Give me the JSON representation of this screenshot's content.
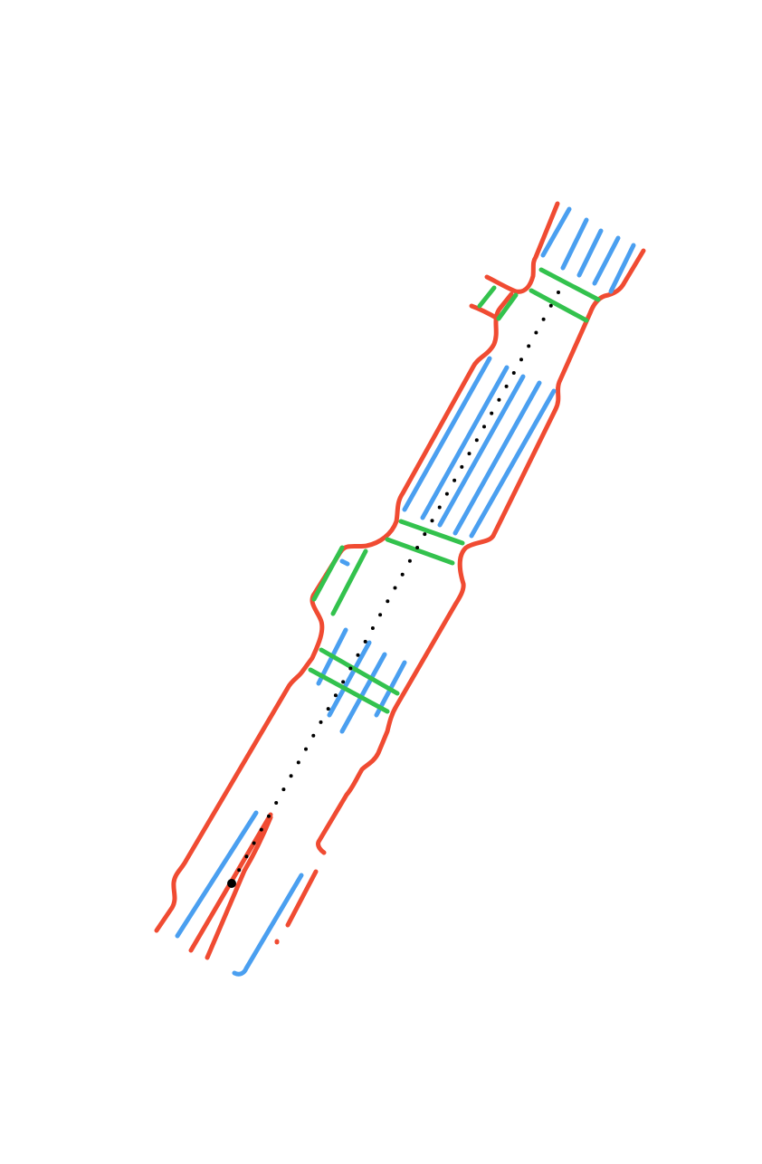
{
  "map": {
    "colors": {
      "background": "#ffffff",
      "road_edge": "#f04b32",
      "lane_divider": "#4a9ff0",
      "crosswalk": "#33c24d",
      "trajectory": "#000000"
    },
    "legend": []
  }
}
